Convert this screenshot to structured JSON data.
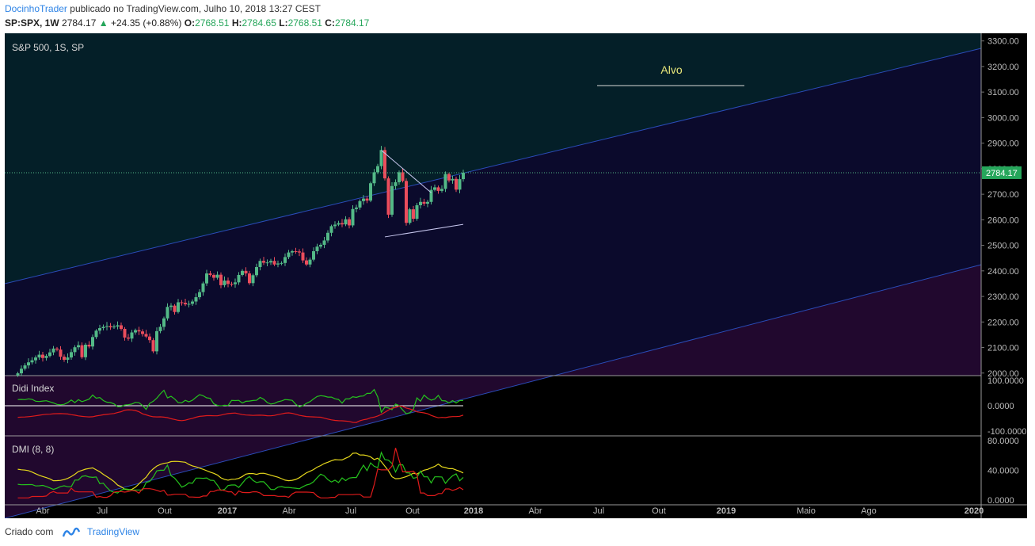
{
  "header": {
    "author": "DocinhoTrader",
    "published_text": "publicado no TradingView.com, Julho 10, 2018 13:27 CEST",
    "symbol": "SP:SPX, 1W",
    "last": "2784.17",
    "change": "+24.35 (+0.88%)",
    "o_label": "O:",
    "o_value": "2768.51",
    "h_label": "H:",
    "h_value": "2784.65",
    "l_label": "L:",
    "l_value": "2768.51",
    "c_label": "C:",
    "c_value": "2784.17"
  },
  "footer": {
    "made_with": "Criado com",
    "brand": "TradingView"
  },
  "colors": {
    "bg": "#000000",
    "up": "#53b987",
    "down": "#eb4d5c",
    "channel_top_fill": "#041f28",
    "channel_mid_fill": "#0b0a2c",
    "channel_bottom_fill": "#21082e",
    "channel_line": "#2a4cb8",
    "target": "#e9e87a",
    "didi_green": "#25c21d",
    "didi_red": "#e01b1b",
    "dmi_green": "#25c21d",
    "dmi_red": "#e01b1b",
    "dmi_yellow": "#e6d81c",
    "last_price_bg": "#26a65b"
  },
  "chart_data": [
    {
      "type": "candlestick",
      "title": "S&P 500, 1S, SP",
      "annotation": "Alvo",
      "last_price_label": "2784.17",
      "ylim": [
        1990,
        3330
      ],
      "y_ticks": [
        "3300.00",
        "3200.00",
        "3100.00",
        "3000.00",
        "2900.00",
        "2800.00",
        "2700.00",
        "2600.00",
        "2500.00",
        "2400.00",
        "2300.00",
        "2200.00",
        "2100.00",
        "2000.00"
      ],
      "x_ticks": [
        "Abr",
        "Jul",
        "Out",
        "2017",
        "Abr",
        "Jul",
        "Out",
        "2018",
        "Abr",
        "Jul",
        "Out",
        "2019",
        "Maio",
        "Ago",
        "2020"
      ],
      "close": [
        1999,
        2017,
        2030,
        2042,
        2050,
        2061,
        2072,
        2059,
        2067,
        2081,
        2096,
        2092,
        2064,
        2052,
        2061,
        2082,
        2101,
        2109,
        2062,
        2111,
        2104,
        2141,
        2166,
        2176,
        2181,
        2184,
        2179,
        2182,
        2187,
        2173,
        2139,
        2135,
        2159,
        2168,
        2163,
        2153,
        2143,
        2129,
        2085,
        2164,
        2181,
        2214,
        2259,
        2264,
        2239,
        2277,
        2275,
        2269,
        2271,
        2280,
        2297,
        2317,
        2351,
        2390,
        2384,
        2373,
        2385,
        2344,
        2362,
        2349,
        2348,
        2355,
        2384,
        2400,
        2390,
        2352,
        2383,
        2415,
        2439,
        2432,
        2433,
        2439,
        2425,
        2429,
        2431,
        2454,
        2472,
        2477,
        2476,
        2472,
        2441,
        2425,
        2444,
        2477,
        2495,
        2502,
        2519,
        2549,
        2575,
        2581,
        2587,
        2582,
        2602,
        2578,
        2642,
        2648,
        2673,
        2683,
        2675,
        2743,
        2786,
        2810,
        2873,
        2762,
        2620,
        2732,
        2747,
        2786,
        2752,
        2588,
        2641,
        2604,
        2657,
        2670,
        2663,
        2670,
        2717,
        2727,
        2713,
        2721,
        2779,
        2754,
        2760,
        2718,
        2759,
        2784
      ],
      "series": [
        {
          "name": "Didi Index",
          "ylim": [
            -100,
            100
          ],
          "y_ticks": [
            "100.0000",
            "0.0000",
            "-100.0000"
          ]
        },
        {
          "name": "DMI (8, 8)",
          "ylim": [
            0,
            80
          ],
          "y_ticks": [
            "80.0000",
            "40.0000",
            "0.0000"
          ]
        }
      ]
    }
  ]
}
